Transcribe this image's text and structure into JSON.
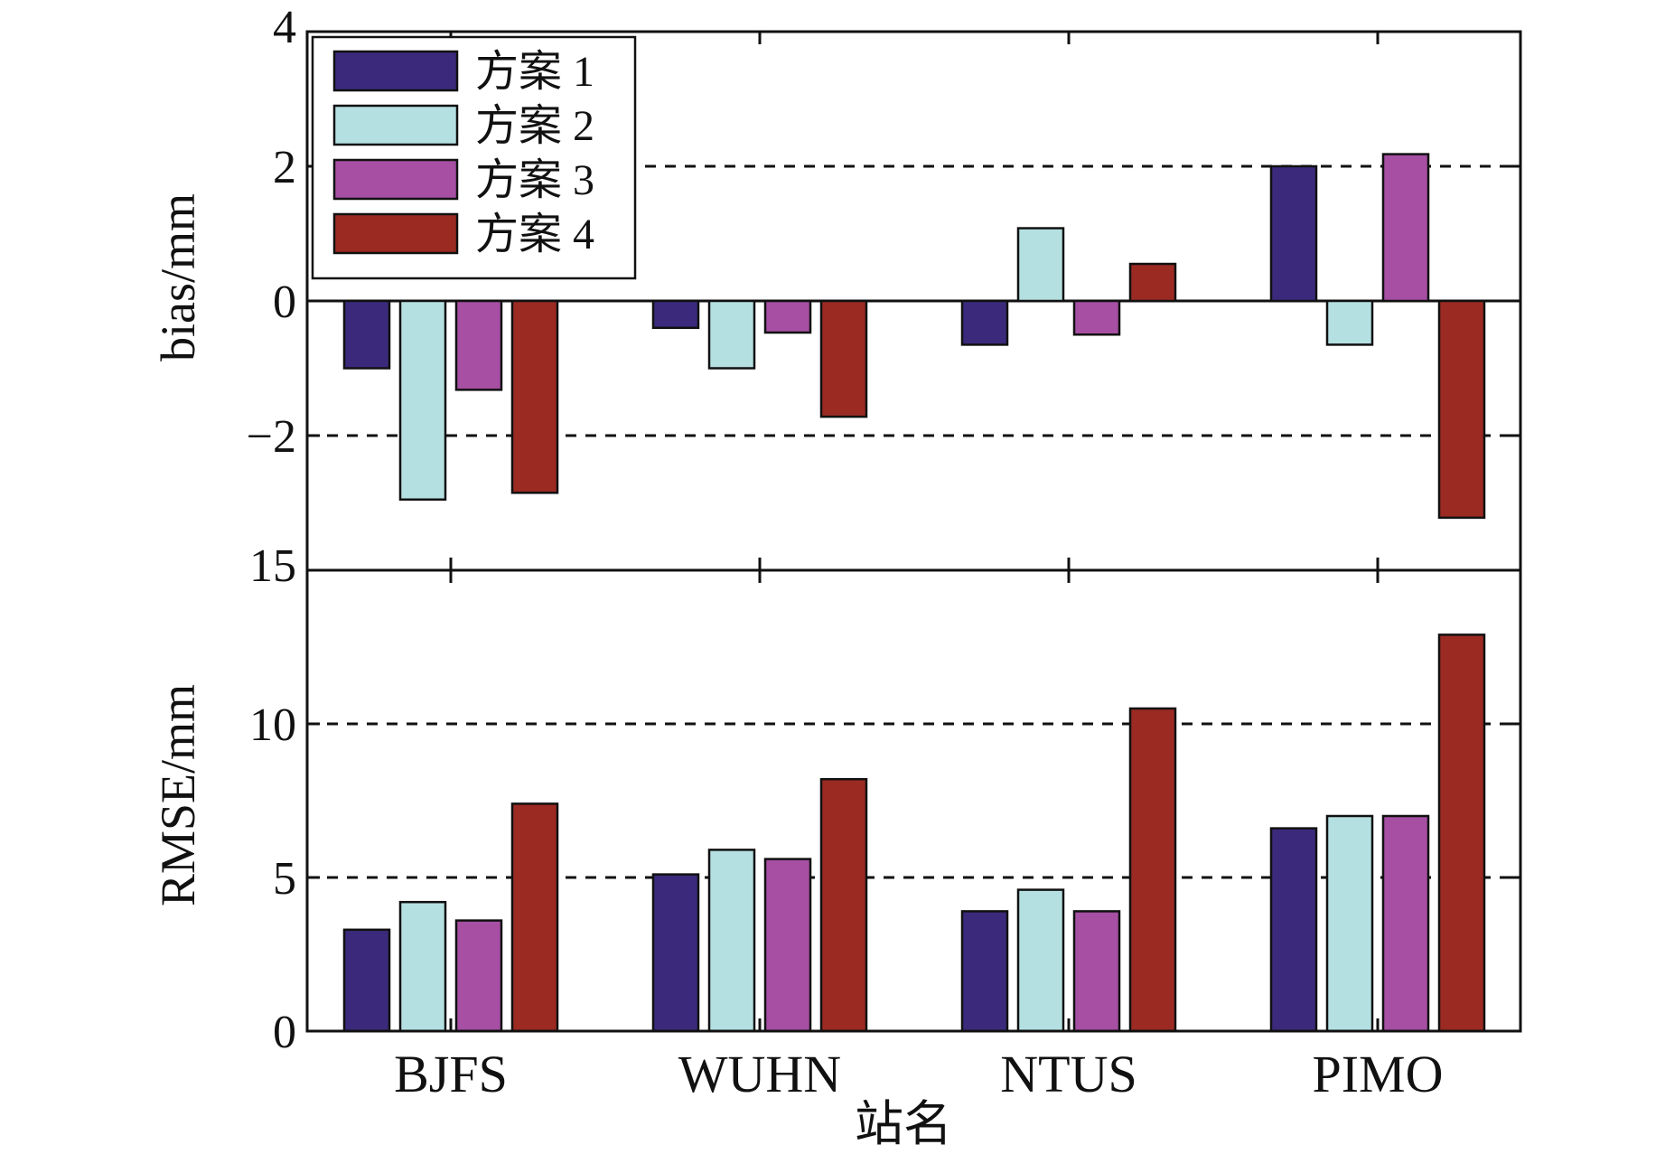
{
  "chart_data": [
    {
      "type": "bar",
      "panel": "top",
      "categories": [
        "BJFS",
        "WUHN",
        "NTUS",
        "PIMO"
      ],
      "series": [
        {
          "name": "方案 1",
          "values": [
            -1.0,
            -0.4,
            -0.65,
            2.0
          ]
        },
        {
          "name": "方案 2",
          "values": [
            -2.95,
            -1.0,
            1.08,
            -0.65
          ]
        },
        {
          "name": "方案 3",
          "values": [
            -1.32,
            -0.47,
            -0.5,
            2.18
          ]
        },
        {
          "name": "方案 4",
          "values": [
            -2.85,
            -1.72,
            0.55,
            -3.22
          ]
        }
      ],
      "xlabel": "",
      "ylabel": "bias/mm",
      "ylim": [
        -4,
        4
      ],
      "yticks": [
        -2,
        0,
        2,
        4
      ],
      "ytick_labels": [
        "−2",
        "0",
        "2",
        "4"
      ],
      "reference_lines": [
        -2,
        0,
        2
      ],
      "legend": "top-left"
    },
    {
      "type": "bar",
      "panel": "bottom",
      "categories": [
        "BJFS",
        "WUHN",
        "NTUS",
        "PIMO"
      ],
      "series": [
        {
          "name": "方案 1",
          "values": [
            3.3,
            5.1,
            3.9,
            6.6
          ]
        },
        {
          "name": "方案 2",
          "values": [
            4.2,
            5.9,
            4.6,
            7.0
          ]
        },
        {
          "name": "方案 3",
          "values": [
            3.6,
            5.6,
            3.9,
            7.0
          ]
        },
        {
          "name": "方案 4",
          "values": [
            7.4,
            8.2,
            10.5,
            12.9
          ]
        }
      ],
      "xlabel": "站名",
      "ylabel": "RMSE/mm",
      "ylim": [
        0,
        15
      ],
      "yticks": [
        0,
        5,
        10,
        15
      ],
      "ytick_labels": [
        "0",
        "5",
        "10",
        "15"
      ],
      "reference_lines": [
        5,
        10
      ]
    }
  ],
  "colors": {
    "series": [
      "#3b2a7c",
      "#b5e0e2",
      "#a64fa3",
      "#9b2a22"
    ]
  }
}
